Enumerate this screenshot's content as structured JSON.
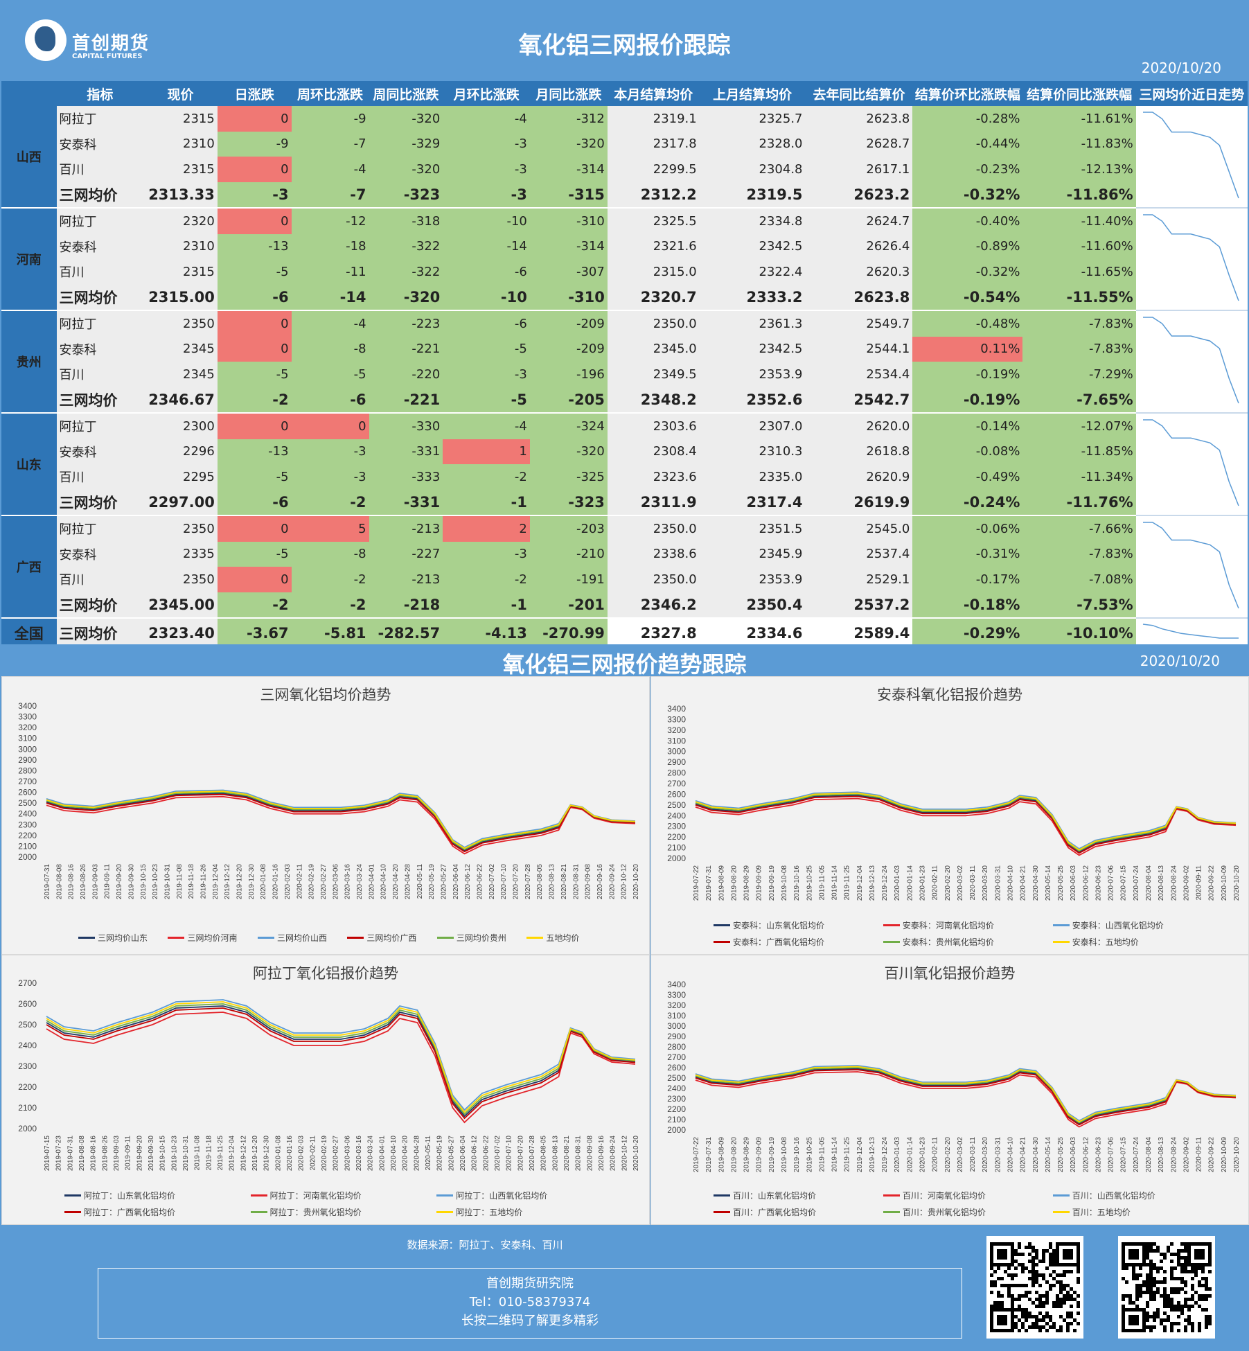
{
  "header": {
    "logo_cn": "首创期货",
    "logo_en": "CAPITAL FUTURES",
    "title": "氧化铝三网报价跟踪",
    "date": "2020/10/20"
  },
  "table": {
    "columns": [
      "指标",
      "现价",
      "日涨跌",
      "周环比涨跌",
      "周同比涨跌",
      "月环比涨跌",
      "月同比涨跌",
      "本月结算均价",
      "上月结算均价",
      "去年同比结算价",
      "结算价环比涨跌幅",
      "结算价同比涨跌幅",
      "三网均价近日走势"
    ],
    "groups": [
      {
        "province": "山西",
        "rows": [
          [
            "阿拉丁",
            "2315",
            "0",
            "-9",
            "-320",
            "-4",
            "-312",
            "2319.1",
            "2325.7",
            "2623.8",
            "-0.28%",
            "-11.61%"
          ],
          [
            "安泰科",
            "2310",
            "-9",
            "-7",
            "-329",
            "-3",
            "-320",
            "2317.8",
            "2328.0",
            "2628.7",
            "-0.44%",
            "-11.83%"
          ],
          [
            "百川",
            "2315",
            "0",
            "-4",
            "-320",
            "-3",
            "-314",
            "2299.5",
            "2304.8",
            "2617.1",
            "-0.23%",
            "-12.13%"
          ],
          [
            "三网均价",
            "2313.33",
            "-3",
            "-7",
            "-323",
            "-3",
            "-315",
            "2312.2",
            "2319.5",
            "2623.2",
            "-0.32%",
            "-11.86%"
          ]
        ]
      },
      {
        "province": "河南",
        "rows": [
          [
            "阿拉丁",
            "2320",
            "0",
            "-12",
            "-318",
            "-10",
            "-310",
            "2325.5",
            "2334.8",
            "2624.7",
            "-0.40%",
            "-11.40%"
          ],
          [
            "安泰科",
            "2310",
            "-13",
            "-18",
            "-322",
            "-14",
            "-314",
            "2321.6",
            "2342.5",
            "2626.4",
            "-0.89%",
            "-11.60%"
          ],
          [
            "百川",
            "2315",
            "-5",
            "-11",
            "-322",
            "-6",
            "-307",
            "2315.0",
            "2322.4",
            "2620.3",
            "-0.32%",
            "-11.65%"
          ],
          [
            "三网均价",
            "2315.00",
            "-6",
            "-14",
            "-320",
            "-10",
            "-310",
            "2320.7",
            "2333.2",
            "2623.8",
            "-0.54%",
            "-11.55%"
          ]
        ]
      },
      {
        "province": "贵州",
        "rows": [
          [
            "阿拉丁",
            "2350",
            "0",
            "-4",
            "-223",
            "-6",
            "-209",
            "2350.0",
            "2361.3",
            "2549.7",
            "-0.48%",
            "-7.83%"
          ],
          [
            "安泰科",
            "2345",
            "0",
            "-8",
            "-221",
            "-5",
            "-209",
            "2345.0",
            "2342.5",
            "2544.1",
            "0.11%",
            "-7.83%"
          ],
          [
            "百川",
            "2345",
            "-5",
            "-5",
            "-220",
            "-3",
            "-196",
            "2349.5",
            "2353.9",
            "2534.4",
            "-0.19%",
            "-7.29%"
          ],
          [
            "三网均价",
            "2346.67",
            "-2",
            "-6",
            "-221",
            "-5",
            "-205",
            "2348.2",
            "2352.6",
            "2542.7",
            "-0.19%",
            "-7.65%"
          ]
        ]
      },
      {
        "province": "山东",
        "rows": [
          [
            "阿拉丁",
            "2300",
            "0",
            "0",
            "-330",
            "-4",
            "-324",
            "2303.6",
            "2307.0",
            "2620.0",
            "-0.14%",
            "-12.07%"
          ],
          [
            "安泰科",
            "2296",
            "-13",
            "-3",
            "-331",
            "1",
            "-320",
            "2308.4",
            "2310.3",
            "2618.8",
            "-0.08%",
            "-11.85%"
          ],
          [
            "百川",
            "2295",
            "-5",
            "-3",
            "-333",
            "-2",
            "-325",
            "2323.6",
            "2335.0",
            "2620.9",
            "-0.49%",
            "-11.34%"
          ],
          [
            "三网均价",
            "2297.00",
            "-6",
            "-2",
            "-331",
            "-1",
            "-323",
            "2311.9",
            "2317.4",
            "2619.9",
            "-0.24%",
            "-11.76%"
          ]
        ]
      },
      {
        "province": "广西",
        "rows": [
          [
            "阿拉丁",
            "2350",
            "0",
            "5",
            "-213",
            "2",
            "-203",
            "2350.0",
            "2351.5",
            "2545.0",
            "-0.06%",
            "-7.66%"
          ],
          [
            "安泰科",
            "2335",
            "-5",
            "-8",
            "-227",
            "-3",
            "-210",
            "2338.6",
            "2345.9",
            "2537.4",
            "-0.31%",
            "-7.83%"
          ],
          [
            "百川",
            "2350",
            "0",
            "-2",
            "-213",
            "-2",
            "-191",
            "2350.0",
            "2353.9",
            "2529.1",
            "-0.17%",
            "-7.08%"
          ],
          [
            "三网均价",
            "2345.00",
            "-2",
            "-2",
            "-218",
            "-1",
            "-201",
            "2346.2",
            "2350.4",
            "2537.2",
            "-0.18%",
            "-7.53%"
          ]
        ]
      }
    ],
    "national": {
      "province": "全国",
      "row": [
        "三网均价",
        "2323.40",
        "-3.67",
        "-5.81",
        "-282.57",
        "-4.13",
        "-270.99",
        "2327.8",
        "2334.6",
        "2589.4",
        "-0.29%",
        "-10.10%"
      ]
    }
  },
  "section2": {
    "title": "氧化铝三网报价趋势跟踪",
    "date": "2020/10/20"
  },
  "charts": [
    {
      "title": "三网氧化铝均价趋势",
      "y_ticks": [
        "3400",
        "3300",
        "3200",
        "3100",
        "3000",
        "2900",
        "2800",
        "2700",
        "2600",
        "2500",
        "2400",
        "2300",
        "2200",
        "2100",
        "2000"
      ],
      "x_ticks": [
        "2019-07-31",
        "2019-08-08",
        "2019-08-16",
        "2019-08-26",
        "2019-09-03",
        "2019-09-11",
        "2019-09-20",
        "2019-09-30",
        "2019-10-15",
        "2019-10-23",
        "2019-10-31",
        "2019-11-08",
        "2019-11-18",
        "2019-11-26",
        "2019-12-04",
        "2019-12-12",
        "2019-12-20",
        "2019-12-30",
        "2020-01-08",
        "2020-01-16",
        "2020-02-03",
        "2020-02-11",
        "2020-02-19",
        "2020-02-27",
        "2020-03-06",
        "2020-03-16",
        "2020-03-24",
        "2020-04-01",
        "2020-04-10",
        "2020-04-20",
        "2020-04-28",
        "2020-05-11",
        "2020-05-19",
        "2020-05-27",
        "2020-06-04",
        "2020-06-12",
        "2020-06-22",
        "2020-07-02",
        "2020-07-10",
        "2020-07-20",
        "2020-07-28",
        "2020-08-05",
        "2020-08-13",
        "2020-08-21",
        "2020-08-31",
        "2020-09-08",
        "2020-09-16",
        "2020-09-24",
        "2020-10-12",
        "2020-10-20"
      ],
      "legend": [
        "三网均价山东",
        "三网均价河南",
        "三网均价山西",
        "三网均价广西",
        "三网均价贵州",
        "五地均价"
      ]
    },
    {
      "title": "安泰科氧化铝报价趋势",
      "y_ticks": [
        "3400",
        "3300",
        "3200",
        "3100",
        "3000",
        "2900",
        "2800",
        "2700",
        "2600",
        "2500",
        "2400",
        "2300",
        "2200",
        "2100",
        "2000"
      ],
      "x_ticks": [
        "2019-07-22",
        "2019-07-31",
        "2019-08-09",
        "2019-08-20",
        "2019-08-29",
        "2019-09-09",
        "2019-09-19",
        "2019-10-08",
        "2019-10-16",
        "2019-10-25",
        "2019-11-05",
        "2019-11-14",
        "2019-11-25",
        "2019-12-04",
        "2019-12-13",
        "2019-12-24",
        "2020-01-03",
        "2020-01-14",
        "2020-01-23",
        "2020-02-11",
        "2020-02-20",
        "2020-03-02",
        "2020-03-11",
        "2020-03-20",
        "2020-03-31",
        "2020-04-10",
        "2020-04-21",
        "2020-04-30",
        "2020-05-14",
        "2020-05-25",
        "2020-06-03",
        "2020-06-12",
        "2020-06-23",
        "2020-07-06",
        "2020-07-15",
        "2020-07-24",
        "2020-08-04",
        "2020-08-13",
        "2020-08-24",
        "2020-09-02",
        "2020-09-11",
        "2020-09-22",
        "2020-10-09",
        "2020-10-20"
      ],
      "legend": [
        "安泰科：山东氧化铝均价",
        "安泰科：河南氧化铝均价",
        "安泰科：山西氧化铝均价",
        "安泰科：广西氧化铝均价",
        "安泰科：贵州氧化铝均价",
        "安泰科：五地均价"
      ]
    },
    {
      "title": "阿拉丁氧化铝报价趋势",
      "y_ticks": [
        "2700",
        "2600",
        "2500",
        "2400",
        "2300",
        "2200",
        "2100",
        "2000"
      ],
      "x_ticks": [
        "2019-07-15",
        "2019-07-23",
        "2019-07-31",
        "2019-08-08",
        "2019-08-16",
        "2019-08-26",
        "2019-09-03",
        "2019-09-11",
        "2019-09-20",
        "2019-09-30",
        "2019-10-15",
        "2019-10-23",
        "2019-10-31",
        "2019-11-08",
        "2019-11-18",
        "2019-11-25",
        "2019-12-04",
        "2019-12-12",
        "2019-12-20",
        "2019-12-30",
        "2020-01-08",
        "2020-01-16",
        "2020-02-03",
        "2020-02-11",
        "2020-02-19",
        "2020-02-27",
        "2020-03-06",
        "2020-03-16",
        "2020-03-24",
        "2020-04-01",
        "2020-04-10",
        "2020-04-20",
        "2020-04-28",
        "2020-05-11",
        "2020-05-19",
        "2020-05-27",
        "2020-06-04",
        "2020-06-12",
        "2020-06-22",
        "2020-07-02",
        "2020-07-10",
        "2020-07-20",
        "2020-07-28",
        "2020-08-05",
        "2020-08-13",
        "2020-08-21",
        "2020-08-31",
        "2020-09-08",
        "2020-09-16",
        "2020-09-24",
        "2020-10-12",
        "2020-10-20"
      ],
      "legend": [
        "阿拉丁：山东氧化铝均价",
        "阿拉丁：河南氧化铝均价",
        "阿拉丁：山西氧化铝均价",
        "阿拉丁：广西氧化铝均价",
        "阿拉丁：贵州氧化铝均价",
        "阿拉丁：五地均价"
      ]
    },
    {
      "title": "百川氧化铝报价趋势",
      "y_ticks": [
        "3400",
        "3300",
        "3200",
        "3100",
        "3000",
        "2900",
        "2800",
        "2700",
        "2600",
        "2500",
        "2400",
        "2300",
        "2200",
        "2100",
        "2000"
      ],
      "x_ticks": [
        "2019-07-22",
        "2019-07-31",
        "2019-08-09",
        "2019-08-20",
        "2019-08-29",
        "2019-09-09",
        "2019-09-19",
        "2019-10-08",
        "2019-10-16",
        "2019-10-25",
        "2019-11-05",
        "2019-11-14",
        "2019-11-25",
        "2019-12-04",
        "2019-12-13",
        "2019-12-24",
        "2020-01-03",
        "2020-01-14",
        "2020-01-23",
        "2020-02-11",
        "2020-02-20",
        "2020-03-02",
        "2020-03-11",
        "2020-03-20",
        "2020-03-31",
        "2020-04-10",
        "2020-04-21",
        "2020-04-30",
        "2020-05-14",
        "2020-05-25",
        "2020-06-03",
        "2020-06-12",
        "2020-06-23",
        "2020-07-06",
        "2020-07-15",
        "2020-07-24",
        "2020-08-04",
        "2020-08-13",
        "2020-08-24",
        "2020-09-02",
        "2020-09-11",
        "2020-09-22",
        "2020-10-09",
        "2020-10-20"
      ],
      "legend": [
        "百川：山东氧化铝均价",
        "百川：河南氧化铝均价",
        "百川：山西氧化铝均价",
        "百川：广西氧化铝均价",
        "百川：贵州氧化铝均价",
        "百川：五地均价"
      ]
    }
  ],
  "series_colors": [
    "#1f3864",
    "#e3242b",
    "#5b9bd5",
    "#c00000",
    "#70ad47",
    "#ffd700"
  ],
  "footer": {
    "source": "数据来源：阿拉丁、安泰科、百川",
    "org": "首创期货研究院",
    "tel": "Tel：010-58379374",
    "hint": "长按二维码了解更多精彩"
  }
}
